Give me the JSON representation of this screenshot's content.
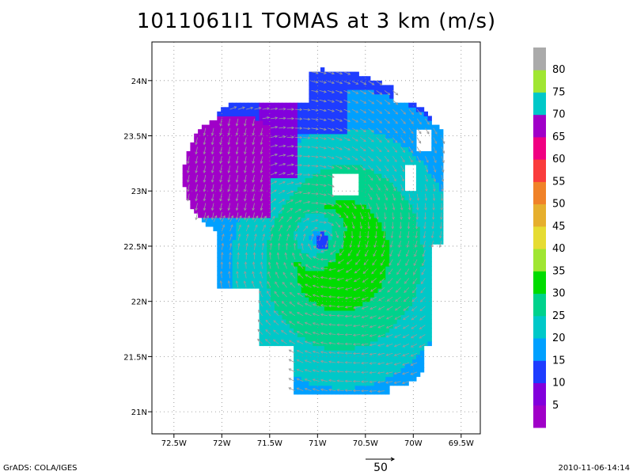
{
  "title": "1011061I1 TOMAS at 3 km (m/s)",
  "footer": {
    "left": "GrADS: COLA/IGES",
    "right": "2010-11-06-14:14"
  },
  "reference_vector": {
    "label": "50",
    "magnitude": 50,
    "units": "m/s"
  },
  "map": {
    "lon_range": [
      -72.73,
      -69.3
    ],
    "lat_range": [
      20.8,
      24.35
    ],
    "lon_ticks": [
      {
        "value": -72.5,
        "label": "72.5W"
      },
      {
        "value": -72.0,
        "label": "72W"
      },
      {
        "value": -71.5,
        "label": "71.5W"
      },
      {
        "value": -71.0,
        "label": "71W"
      },
      {
        "value": -70.5,
        "label": "70.5W"
      },
      {
        "value": -70.0,
        "label": "70W"
      },
      {
        "value": -69.5,
        "label": "69.5W"
      }
    ],
    "lat_ticks": [
      {
        "value": 21.0,
        "label": "21N"
      },
      {
        "value": 21.5,
        "label": "21.5N"
      },
      {
        "value": 22.0,
        "label": "22N"
      },
      {
        "value": 22.5,
        "label": "22.5N"
      },
      {
        "value": 23.0,
        "label": "23N"
      },
      {
        "value": 23.5,
        "label": "23.5N"
      },
      {
        "value": 24.0,
        "label": "24N"
      }
    ],
    "grid": "dotted",
    "storm_center": {
      "lon": -70.95,
      "lat": 22.55
    },
    "circulation": "cyclonic (counter-clockwise)"
  },
  "colorbar": {
    "levels": [
      {
        "label": "",
        "color": "#a000c8"
      },
      {
        "label": "5",
        "color": "#8200dc"
      },
      {
        "label": "10",
        "color": "#1e3cff"
      },
      {
        "label": "15",
        "color": "#00a0ff"
      },
      {
        "label": "20",
        "color": "#00c8c8"
      },
      {
        "label": "25",
        "color": "#00d28c"
      },
      {
        "label": "30",
        "color": "#00dc00"
      },
      {
        "label": "35",
        "color": "#a0e632"
      },
      {
        "label": "40",
        "color": "#e6dc32"
      },
      {
        "label": "45",
        "color": "#e6af2d"
      },
      {
        "label": "50",
        "color": "#f08228"
      },
      {
        "label": "55",
        "color": "#fa3c3c"
      },
      {
        "label": "60",
        "color": "#f00082"
      },
      {
        "label": "65",
        "color": "#a000c8"
      },
      {
        "label": "70",
        "color": "#00c8c8"
      },
      {
        "label": "75",
        "color": "#a0e632"
      },
      {
        "label": "80",
        "color": "#aaaaaa"
      }
    ]
  }
}
